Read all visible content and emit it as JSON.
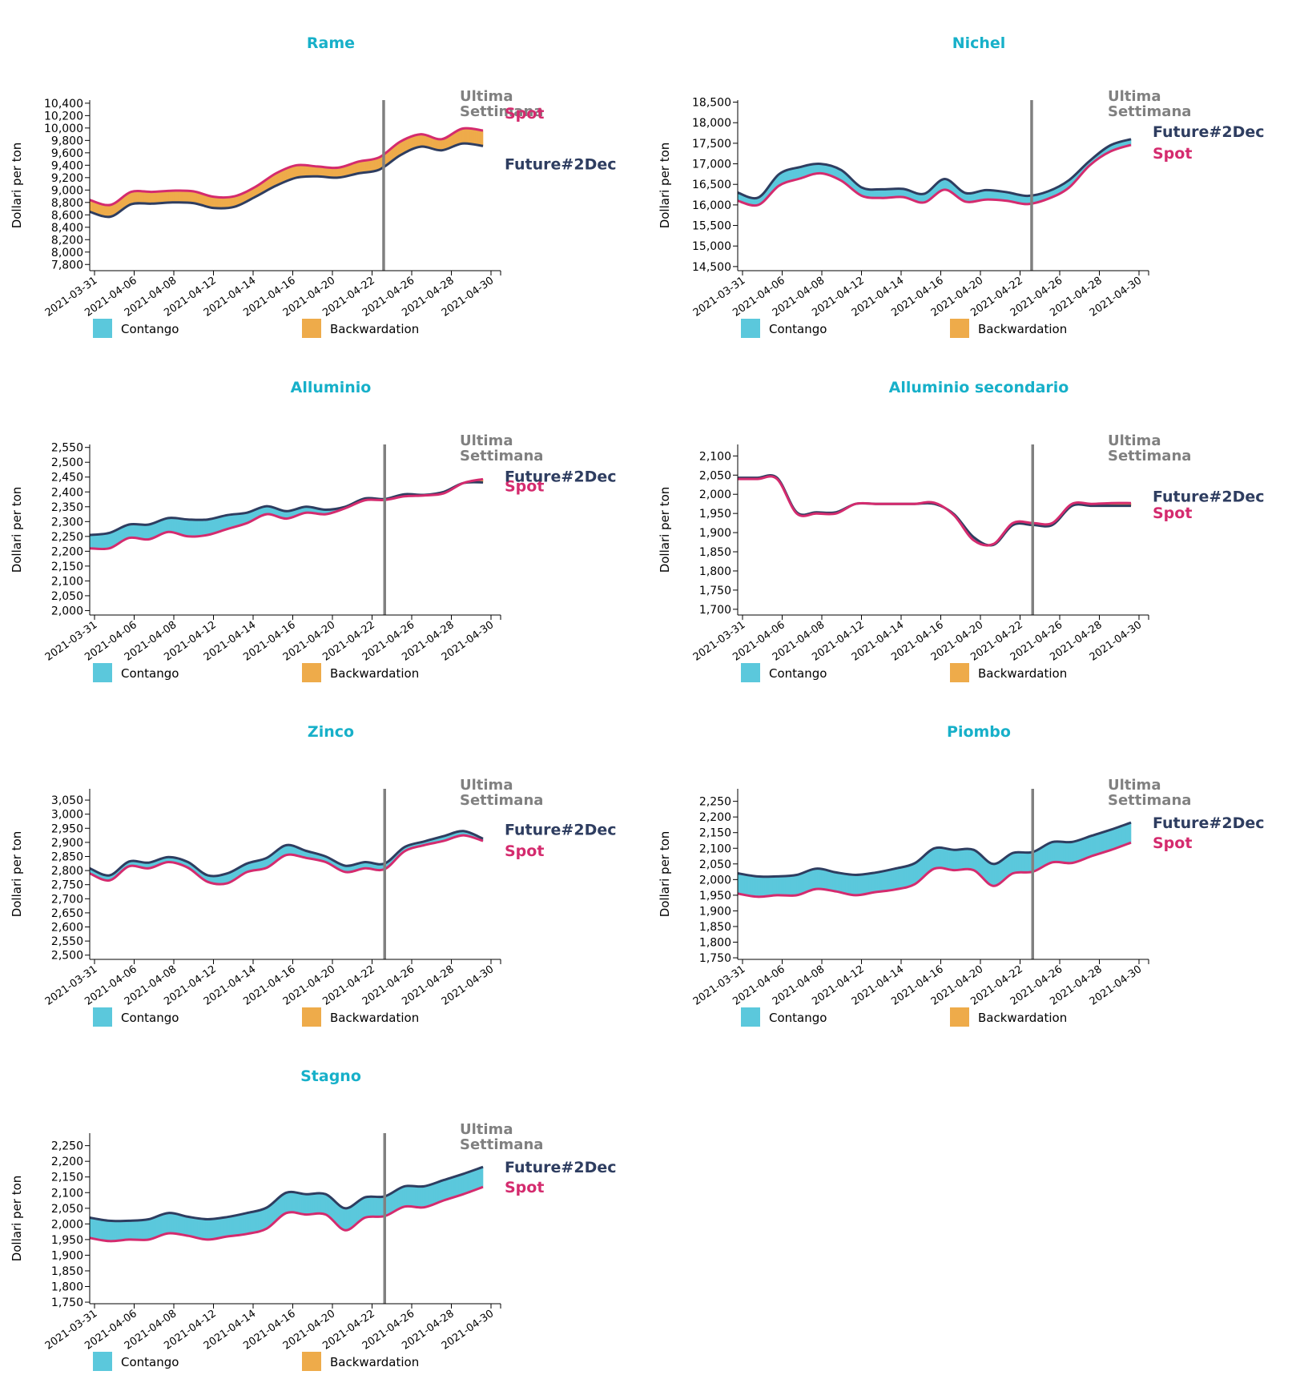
{
  "colors": {
    "title": "#17b0c9",
    "contango": "#5bc8dc",
    "backwardation": "#eeab4a",
    "spot_line": "#d42b6e",
    "future_line": "#2e3d60",
    "last_week_line": "#808080"
  },
  "common": {
    "y_axis_label": "Dollari per ton",
    "last_week_label": [
      "Ultima",
      "Settimana"
    ],
    "spot_label": "Spot",
    "future_label": "Future#2Dec",
    "legend_contango": "Contango",
    "legend_backwardation": "Backwardation",
    "x_ticks": [
      "2021-03-31",
      "2021-04-06",
      "2021-04-08",
      "2021-04-12",
      "2021-04-14",
      "2021-04-16",
      "2021-04-20",
      "2021-04-22",
      "2021-04-26",
      "2021-04-28",
      "2021-04-30"
    ]
  },
  "chart_data": [
    {
      "type": "area",
      "title": "Rame",
      "ylabel": "Dollari per ton",
      "ylim": [
        7700,
        10450
      ],
      "yticks": [
        7800,
        8000,
        8200,
        8400,
        8600,
        8800,
        9000,
        9200,
        9400,
        9600,
        9800,
        10000,
        10200,
        10400
      ],
      "series": [
        {
          "name": "Spot",
          "values": [
            8840,
            8760,
            8970,
            8970,
            8990,
            8980,
            8890,
            8900,
            9050,
            9270,
            9400,
            9380,
            9360,
            9460,
            9530,
            9780,
            9900,
            9820,
            9990,
            9960
          ]
        },
        {
          "name": "Future#2Dec",
          "values": [
            8650,
            8570,
            8770,
            8780,
            8800,
            8790,
            8710,
            8730,
            8890,
            9070,
            9200,
            9220,
            9200,
            9270,
            9330,
            9560,
            9700,
            9640,
            9750,
            9710
          ]
        }
      ],
      "last_week_index": 14.2,
      "label_offsets": {
        "spot": -22,
        "future": 22
      }
    },
    {
      "type": "area",
      "title": "Nichel",
      "ylabel": "Dollari per ton",
      "ylim": [
        14400,
        18550
      ],
      "yticks": [
        14500,
        15000,
        15500,
        16000,
        16500,
        17000,
        17500,
        18000,
        18500
      ],
      "series": [
        {
          "name": "Spot",
          "values": [
            16100,
            16000,
            16470,
            16640,
            16770,
            16590,
            16220,
            16170,
            16190,
            16060,
            16370,
            16080,
            16130,
            16100,
            16020,
            16150,
            16420,
            16960,
            17300,
            17460
          ]
        },
        {
          "name": "Future#2Dec",
          "values": [
            16300,
            16180,
            16750,
            16920,
            17000,
            16850,
            16420,
            16380,
            16390,
            16270,
            16630,
            16290,
            16360,
            16310,
            16220,
            16330,
            16600,
            17070,
            17450,
            17600
          ]
        }
      ],
      "last_week_index": 14.2,
      "label_offsets": {
        "spot": 10,
        "future": -10
      }
    },
    {
      "type": "area",
      "title": "Alluminio",
      "ylabel": "Dollari per ton",
      "ylim": [
        1985,
        2560
      ],
      "yticks": [
        2000,
        2050,
        2100,
        2150,
        2200,
        2250,
        2300,
        2350,
        2400,
        2450,
        2500,
        2550
      ],
      "series": [
        {
          "name": "Spot",
          "values": [
            2210,
            2210,
            2245,
            2240,
            2265,
            2250,
            2255,
            2275,
            2295,
            2325,
            2310,
            2330,
            2325,
            2345,
            2372,
            2373,
            2385,
            2388,
            2395,
            2430,
            2443
          ]
        },
        {
          "name": "Future#2Dec",
          "values": [
            2255,
            2262,
            2290,
            2290,
            2312,
            2307,
            2307,
            2322,
            2330,
            2352,
            2335,
            2350,
            2340,
            2350,
            2378,
            2376,
            2392,
            2390,
            2400,
            2430,
            2432
          ]
        }
      ],
      "last_week_index": 15.0,
      "label_offsets": {
        "spot": 8,
        "future": -8
      }
    },
    {
      "type": "area",
      "title": "Alluminio secondario",
      "ylabel": "Dollari per ton",
      "ylim": [
        1685,
        2130
      ],
      "yticks": [
        1700,
        1750,
        1800,
        1850,
        1900,
        1950,
        2000,
        2050,
        2100
      ],
      "series": [
        {
          "name": "Spot",
          "values": [
            2040,
            2040,
            2040,
            1950,
            1950,
            1950,
            1975,
            1975,
            1975,
            1975,
            1978,
            1945,
            1880,
            1870,
            1925,
            1925,
            1925,
            1975,
            1975,
            1977,
            1977
          ]
        },
        {
          "name": "Future#2Dec",
          "values": [
            2043,
            2043,
            2043,
            1953,
            1953,
            1953,
            1975,
            1975,
            1975,
            1975,
            1975,
            1948,
            1888,
            1868,
            1920,
            1920,
            1920,
            1970,
            1970,
            1970,
            1970
          ]
        }
      ],
      "last_week_index": 15.0,
      "label_offsets": {
        "spot": 12,
        "future": -12
      }
    },
    {
      "type": "area",
      "title": "Zinco",
      "ylabel": "Dollari per ton",
      "ylim": [
        2485,
        3090
      ],
      "yticks": [
        2500,
        2550,
        2600,
        2650,
        2700,
        2750,
        2800,
        2850,
        2900,
        2950,
        3000,
        3050
      ],
      "series": [
        {
          "name": "Spot",
          "values": [
            2790,
            2765,
            2815,
            2808,
            2830,
            2810,
            2760,
            2755,
            2795,
            2810,
            2855,
            2845,
            2830,
            2795,
            2808,
            2805,
            2868,
            2890,
            2905,
            2925,
            2905
          ]
        },
        {
          "name": "Future#2Dec",
          "values": [
            2808,
            2783,
            2832,
            2828,
            2848,
            2830,
            2783,
            2790,
            2825,
            2845,
            2890,
            2870,
            2850,
            2817,
            2830,
            2825,
            2883,
            2903,
            2922,
            2940,
            2913
          ]
        }
      ],
      "last_week_index": 15.0,
      "label_offsets": {
        "spot": 12,
        "future": -12
      }
    },
    {
      "type": "area",
      "title": "Piombo",
      "ylabel": "Dollari per ton",
      "ylim": [
        1745,
        2290
      ],
      "yticks": [
        1750,
        1800,
        1850,
        1900,
        1950,
        2000,
        2050,
        2100,
        2150,
        2200,
        2250
      ],
      "series": [
        {
          "name": "Spot",
          "values": [
            1955,
            1945,
            1950,
            1950,
            1970,
            1962,
            1950,
            1960,
            1968,
            1985,
            2035,
            2030,
            2030,
            1980,
            2020,
            2025,
            2055,
            2053,
            2075,
            2095,
            2118
          ]
        },
        {
          "name": "Future#2Dec",
          "values": [
            2020,
            2010,
            2010,
            2015,
            2035,
            2023,
            2015,
            2022,
            2035,
            2052,
            2100,
            2095,
            2095,
            2050,
            2085,
            2088,
            2120,
            2120,
            2140,
            2160,
            2182
          ]
        }
      ],
      "last_week_index": 15.0,
      "label_offsets": {
        "spot": 0,
        "future": 0
      }
    },
    {
      "type": "area",
      "title": "Stagno",
      "ylabel": "Dollari per ton",
      "ylim": [
        1745,
        2290
      ],
      "yticks": [
        1750,
        1800,
        1850,
        1900,
        1950,
        2000,
        2050,
        2100,
        2150,
        2200,
        2250
      ],
      "series": [
        {
          "name": "Spot",
          "values": [
            1955,
            1945,
            1950,
            1950,
            1970,
            1962,
            1950,
            1960,
            1968,
            1985,
            2035,
            2030,
            2030,
            1980,
            2020,
            2025,
            2055,
            2053,
            2075,
            2095,
            2118
          ]
        },
        {
          "name": "Future#2Dec",
          "values": [
            2020,
            2010,
            2010,
            2015,
            2035,
            2023,
            2015,
            2022,
            2035,
            2052,
            2100,
            2095,
            2095,
            2050,
            2085,
            2088,
            2120,
            2120,
            2140,
            2160,
            2182
          ]
        }
      ],
      "last_week_index": 15.0,
      "label_offsets": {
        "spot": 0,
        "future": 0
      }
    }
  ]
}
